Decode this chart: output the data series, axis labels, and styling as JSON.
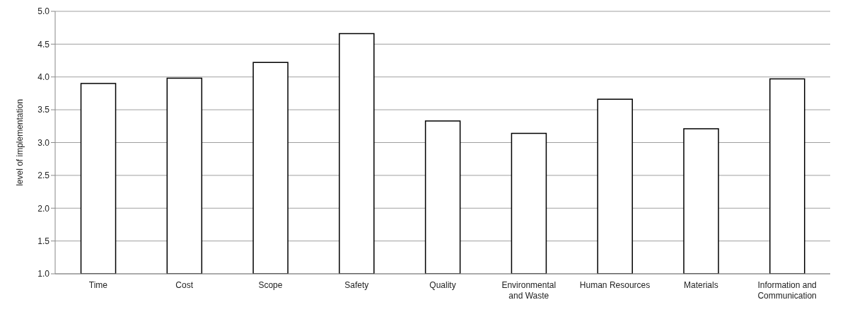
{
  "chart_data": {
    "type": "bar",
    "ylabel": "level of implementation",
    "categories": [
      "Time",
      "Cost",
      "Scope",
      "Safety",
      "Quality",
      "Environmental and Waste",
      "Human Resources",
      "Materials",
      "Information and Communication"
    ],
    "values": [
      3.9,
      3.98,
      4.22,
      4.66,
      3.33,
      3.14,
      3.66,
      3.21,
      3.97
    ],
    "color": "#ffffff",
    "ylim": [
      1,
      5
    ],
    "yticks": [
      {
        "value": 1,
        "label": "1.0"
      },
      {
        "value": 1.5,
        "label": "1.5"
      },
      {
        "value": 2,
        "label": "2.0"
      },
      {
        "value": 2.5,
        "label": "2.5"
      },
      {
        "value": 3,
        "label": "3.0"
      },
      {
        "value": 3.5,
        "label": "3.5"
      },
      {
        "value": 4,
        "label": "4.0"
      },
      {
        "value": 4.5,
        "label": "4.5"
      },
      {
        "value": 5,
        "label": "5.0"
      }
    ],
    "grid": "y"
  }
}
